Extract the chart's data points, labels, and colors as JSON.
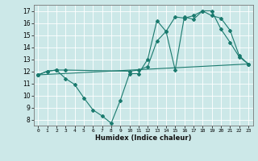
{
  "xlabel": "Humidex (Indice chaleur)",
  "xlim": [
    -0.5,
    23.5
  ],
  "ylim": [
    7.5,
    17.5
  ],
  "yticks": [
    8,
    9,
    10,
    11,
    12,
    13,
    14,
    15,
    16,
    17
  ],
  "xticks": [
    0,
    1,
    2,
    3,
    4,
    5,
    6,
    7,
    8,
    9,
    10,
    11,
    12,
    13,
    14,
    15,
    16,
    17,
    18,
    19,
    20,
    21,
    22,
    23
  ],
  "bg_color": "#cce8e8",
  "grid_color": "#ffffff",
  "line_color": "#1a7a6e",
  "lines": [
    {
      "x": [
        0,
        1,
        2,
        3,
        4,
        5,
        6,
        7,
        8,
        9,
        10,
        11,
        12,
        13,
        14,
        15,
        16,
        17,
        18,
        19,
        20,
        21,
        22,
        23
      ],
      "y": [
        11.7,
        12.0,
        12.1,
        11.4,
        10.9,
        9.8,
        8.8,
        8.3,
        7.7,
        9.6,
        11.8,
        11.8,
        13.0,
        16.2,
        15.3,
        12.1,
        16.5,
        16.3,
        17.0,
        17.0,
        15.5,
        14.4,
        13.2,
        12.6
      ]
    },
    {
      "x": [
        0,
        1,
        2,
        3,
        10,
        11,
        12,
        13,
        14,
        15,
        16,
        17,
        18,
        19,
        20,
        21,
        22,
        23
      ],
      "y": [
        11.7,
        12.0,
        12.1,
        12.1,
        12.0,
        12.1,
        12.4,
        14.5,
        15.3,
        16.5,
        16.4,
        16.6,
        17.0,
        16.6,
        16.4,
        15.4,
        13.3,
        12.6
      ]
    },
    {
      "x": [
        0,
        23
      ],
      "y": [
        11.7,
        12.6
      ]
    }
  ]
}
